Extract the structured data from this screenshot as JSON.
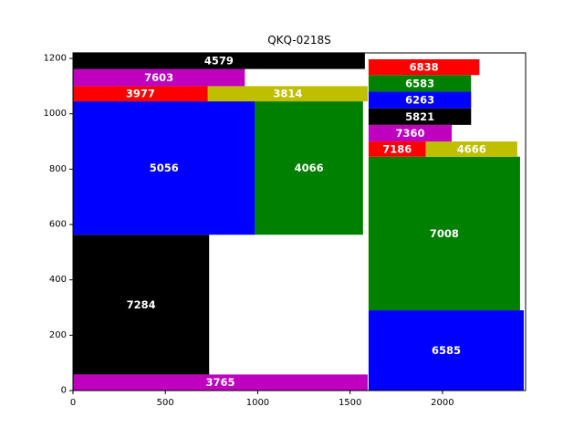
{
  "chart_data": {
    "type": "treemap",
    "title": "QKQ-0218S",
    "xlim": [
      0,
      2450
    ],
    "ylim": [
      0,
      1220
    ],
    "x_ticks": [
      0,
      500,
      1000,
      1500,
      2000
    ],
    "y_ticks": [
      0,
      200,
      400,
      600,
      800,
      1000,
      1200
    ],
    "grid": false,
    "rects": [
      {
        "label": "3765",
        "x0": 0,
        "x1": 1595,
        "y0": 0,
        "y1": 58,
        "color": "#bf00bf"
      },
      {
        "label": "7284",
        "x0": 0,
        "x1": 737,
        "y0": 58,
        "y1": 563,
        "color": "#000000"
      },
      {
        "label": "5056",
        "x0": 0,
        "x1": 985,
        "y0": 563,
        "y1": 1045,
        "color": "#0000ff"
      },
      {
        "label": "4066",
        "x0": 985,
        "x1": 1570,
        "y0": 563,
        "y1": 1045,
        "color": "#008000"
      },
      {
        "label": "3977",
        "x0": 0,
        "x1": 730,
        "y0": 1045,
        "y1": 1100,
        "color": "#ff0000"
      },
      {
        "label": "3814",
        "x0": 730,
        "x1": 1595,
        "y0": 1045,
        "y1": 1100,
        "color": "#bfbf00"
      },
      {
        "label": "7603",
        "x0": 0,
        "x1": 930,
        "y0": 1100,
        "y1": 1162,
        "color": "#bf00bf"
      },
      {
        "label": "4579",
        "x0": 0,
        "x1": 1580,
        "y0": 1162,
        "y1": 1222,
        "color": "#000000"
      },
      {
        "label": "6585",
        "x0": 1600,
        "x1": 2440,
        "y0": 0,
        "y1": 290,
        "color": "#0000ff"
      },
      {
        "label": "7008",
        "x0": 1600,
        "x1": 2420,
        "y0": 290,
        "y1": 845,
        "color": "#008000"
      },
      {
        "label": "7186",
        "x0": 1600,
        "x1": 1910,
        "y0": 845,
        "y1": 900,
        "color": "#ff0000"
      },
      {
        "label": "4666",
        "x0": 1910,
        "x1": 2405,
        "y0": 845,
        "y1": 900,
        "color": "#bfbf00"
      },
      {
        "label": "7360",
        "x0": 1600,
        "x1": 2050,
        "y0": 900,
        "y1": 960,
        "color": "#bf00bf"
      },
      {
        "label": "5821",
        "x0": 1600,
        "x1": 2155,
        "y0": 960,
        "y1": 1020,
        "color": "#000000"
      },
      {
        "label": "6263",
        "x0": 1600,
        "x1": 2155,
        "y0": 1020,
        "y1": 1080,
        "color": "#0000ff"
      },
      {
        "label": "6583",
        "x0": 1600,
        "x1": 2155,
        "y0": 1080,
        "y1": 1140,
        "color": "#008000"
      },
      {
        "label": "6838",
        "x0": 1600,
        "x1": 2200,
        "y0": 1140,
        "y1": 1197,
        "color": "#ff0000"
      }
    ]
  }
}
